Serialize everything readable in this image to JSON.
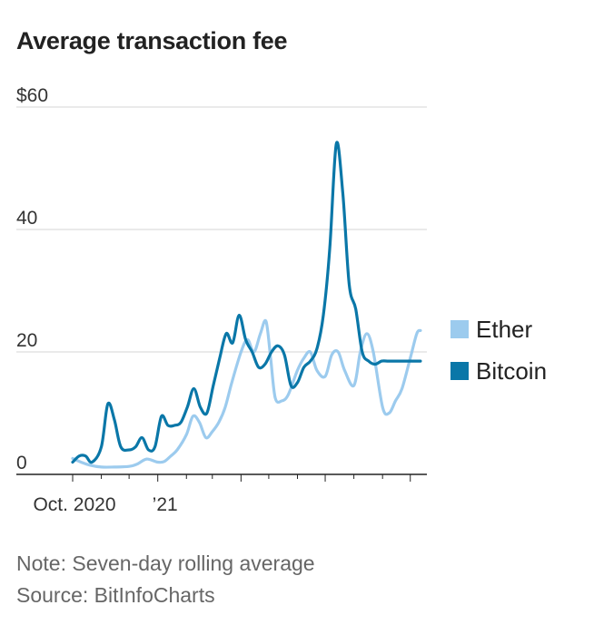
{
  "chart_data": {
    "type": "line",
    "title": "Average transaction fee",
    "xlabel": "",
    "ylabel": "",
    "ylim": [
      0,
      60
    ],
    "yticks": [
      0,
      20,
      40,
      60
    ],
    "ytick_labels": [
      "0",
      "20",
      "40",
      "$60"
    ],
    "xlim": [
      "2020-10-01",
      "2021-10-15"
    ],
    "xtick_labels": [
      {
        "date": "2020-10-01",
        "label": "Oct. 2020"
      },
      {
        "date": "2021-01-01",
        "label": "’21"
      }
    ],
    "grid": true,
    "legend": "right",
    "series": [
      {
        "name": "Ether",
        "color": "#9ccbee",
        "x": [
          "2020-10-01",
          "2020-10-10",
          "2020-10-20",
          "2020-11-01",
          "2020-11-15",
          "2020-12-01",
          "2020-12-10",
          "2020-12-20",
          "2021-01-01",
          "2021-01-08",
          "2021-01-15",
          "2021-01-22",
          "2021-02-01",
          "2021-02-08",
          "2021-02-15",
          "2021-02-22",
          "2021-03-01",
          "2021-03-08",
          "2021-03-15",
          "2021-03-22",
          "2021-04-01",
          "2021-04-08",
          "2021-04-15",
          "2021-04-22",
          "2021-04-28",
          "2021-05-03",
          "2021-05-08",
          "2021-05-15",
          "2021-05-22",
          "2021-06-01",
          "2021-06-08",
          "2021-06-15",
          "2021-06-22",
          "2021-07-01",
          "2021-07-08",
          "2021-07-15",
          "2021-07-22",
          "2021-08-01",
          "2021-08-08",
          "2021-08-15",
          "2021-08-22",
          "2021-09-01",
          "2021-09-08",
          "2021-09-15",
          "2021-09-22",
          "2021-10-01",
          "2021-10-08",
          "2021-10-12"
        ],
        "values": [
          2.6,
          2.0,
          1.5,
          1.2,
          1.2,
          1.3,
          1.7,
          2.5,
          2.0,
          2.1,
          3.0,
          4.0,
          6.5,
          9.5,
          8.5,
          6.0,
          7.0,
          8.5,
          11.0,
          15.0,
          20.0,
          22.0,
          20.0,
          23.0,
          25.0,
          19.0,
          12.5,
          12.0,
          13.0,
          17.0,
          19.0,
          20.0,
          17.0,
          16.0,
          19.5,
          20.0,
          17.0,
          14.5,
          20.0,
          23.0,
          20.0,
          11.0,
          10.0,
          12.0,
          14.0,
          19.0,
          23.0,
          23.5
        ]
      },
      {
        "name": "Bitcoin",
        "color": "#0a77a8",
        "x": [
          "2020-10-01",
          "2020-10-08",
          "2020-10-15",
          "2020-10-22",
          "2020-11-01",
          "2020-11-08",
          "2020-11-15",
          "2020-11-22",
          "2020-12-01",
          "2020-12-08",
          "2020-12-15",
          "2020-12-22",
          "2020-12-29",
          "2021-01-05",
          "2021-01-12",
          "2021-01-19",
          "2021-01-26",
          "2021-02-02",
          "2021-02-09",
          "2021-02-16",
          "2021-02-23",
          "2021-03-02",
          "2021-03-09",
          "2021-03-16",
          "2021-03-23",
          "2021-03-30",
          "2021-04-06",
          "2021-04-13",
          "2021-04-20",
          "2021-04-27",
          "2021-05-04",
          "2021-05-11",
          "2021-05-18",
          "2021-05-25",
          "2021-06-01",
          "2021-06-08",
          "2021-06-15",
          "2021-06-22",
          "2021-06-29",
          "2021-07-06",
          "2021-07-13",
          "2021-07-20",
          "2021-07-27",
          "2021-08-03",
          "2021-08-10",
          "2021-08-17",
          "2021-08-24",
          "2021-08-31",
          "2021-09-07",
          "2021-09-14",
          "2021-09-21",
          "2021-09-28",
          "2021-10-05",
          "2021-10-12"
        ],
        "values": [
          2.0,
          3.0,
          3.0,
          2.0,
          4.5,
          11.5,
          9.0,
          4.5,
          4.0,
          4.5,
          6.0,
          4.0,
          4.5,
          9.5,
          8.0,
          8.0,
          8.5,
          11.0,
          14.0,
          11.0,
          10.0,
          14.5,
          19.0,
          23.0,
          21.5,
          26.0,
          22.0,
          20.0,
          17.5,
          18.0,
          20.0,
          21.0,
          19.5,
          14.5,
          15.0,
          17.5,
          18.5,
          20.5,
          26.0,
          37.0,
          54.0,
          46.0,
          31.0,
          27.0,
          20.0,
          18.5,
          18.0,
          18.5,
          18.5,
          18.5,
          18.5,
          18.5,
          18.5,
          18.5
        ]
      }
    ],
    "notes": [
      "Note: Seven-day rolling average",
      "Source: BitInfoCharts"
    ]
  }
}
